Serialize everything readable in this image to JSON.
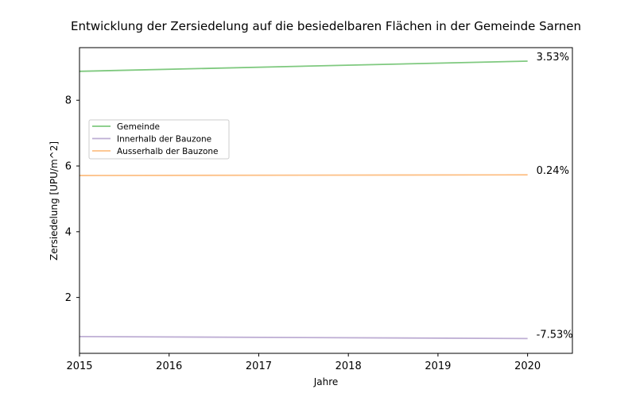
{
  "chart_data": {
    "type": "line",
    "title": "Entwicklung der Zersiedelung auf die besiedelbaren Flächen in der Gemeinde Sarnen",
    "xlabel": "Jahre",
    "ylabel": "Zersiedelung [UPU/m^2]",
    "xlim": [
      2015,
      2020.5
    ],
    "ylim": [
      0.3,
      9.6
    ],
    "x_ticks": [
      2015,
      2016,
      2017,
      2018,
      2019,
      2020
    ],
    "y_ticks": [
      2,
      4,
      6,
      8
    ],
    "x_tick_labels": [
      "2015",
      "2016",
      "2017",
      "2018",
      "2019",
      "2020"
    ],
    "y_tick_labels": [
      "2",
      "4",
      "6",
      "8"
    ],
    "grid": false,
    "legend_position": "center-left",
    "series": [
      {
        "name": "Gemeinde",
        "color": "#7fc97f",
        "x": [
          2015,
          2020
        ],
        "y": [
          8.88,
          9.19
        ],
        "end_label": "3.53%"
      },
      {
        "name": "Innerhalb der Bauzone",
        "color": "#beaed4",
        "x": [
          2015,
          2020
        ],
        "y": [
          0.81,
          0.75
        ],
        "end_label": "-7.53%"
      },
      {
        "name": "Ausserhalb der Bauzone",
        "color": "#fdc086",
        "x": [
          2015,
          2020
        ],
        "y": [
          5.71,
          5.73
        ],
        "end_label": "0.24%"
      }
    ]
  }
}
